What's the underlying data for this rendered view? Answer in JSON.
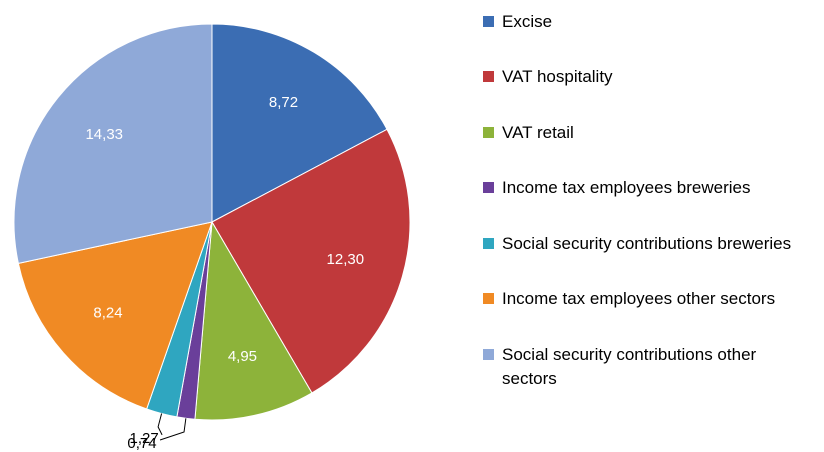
{
  "chart_data": {
    "type": "pie",
    "categories": [
      "Excise",
      "VAT hospitality",
      "VAT retail",
      "Income tax employees breweries",
      "Social security contributions breweries",
      "Income tax employees other sectors",
      "Social security contributions other sectors"
    ],
    "values": [
      8.72,
      12.3,
      4.95,
      0.74,
      1.27,
      8.24,
      14.33
    ],
    "value_labels": [
      "8,72",
      "12,30",
      "4,95",
      "0,74",
      "1,27",
      "8,24",
      "14,33"
    ],
    "colors": [
      "#3b6db3",
      "#c0393b",
      "#8db33a",
      "#6a3f9a",
      "#2fa6c0",
      "#f08a24",
      "#8fa9d8"
    ],
    "legend": "right"
  }
}
